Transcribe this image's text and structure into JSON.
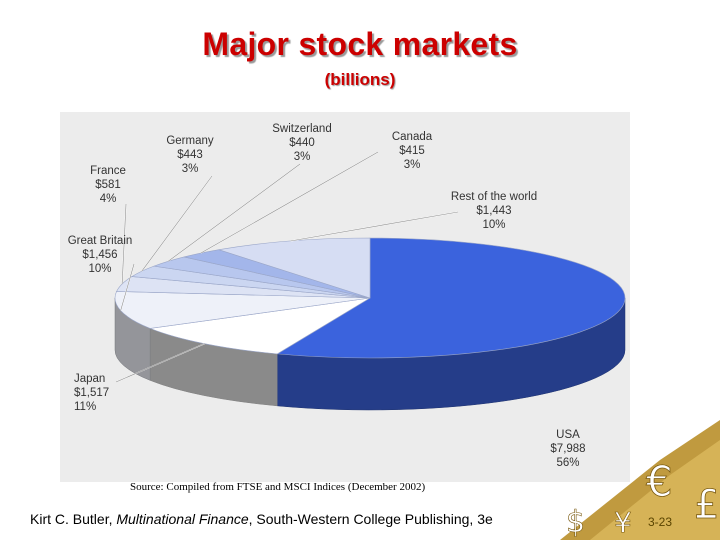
{
  "title": "Major stock markets",
  "subtitle": "(billions)",
  "source_note": "Source: Compiled from FTSE and MSCI Indices (December 2002)",
  "footer": {
    "author": "Kirt C. Butler, ",
    "book": "Multinational Finance",
    "publisher": ", South-Western College Publishing, 3e"
  },
  "page_number": "3-23",
  "decorations": {
    "symbols": [
      "€",
      "¥",
      "£"
    ],
    "accent_color": "#8b6914"
  },
  "chart_data": {
    "type": "pie",
    "title": "Major stock markets",
    "subtitle": "(billions)",
    "slices": [
      {
        "label": "USA",
        "value_label": "$7,988",
        "percent_label": "56%",
        "value": 7988,
        "color": "#3b63dd"
      },
      {
        "label": "Japan",
        "value_label": "$1,517",
        "percent_label": "11%",
        "value": 1517,
        "color": "#ffffff"
      },
      {
        "label": "Great Britain",
        "value_label": "$1,456",
        "percent_label": "10%",
        "value": 1456,
        "color": "#eef1f9"
      },
      {
        "label": "France",
        "value_label": "$581",
        "percent_label": "4%",
        "value": 581,
        "color": "#dde3f4"
      },
      {
        "label": "Germany",
        "value_label": "$443",
        "percent_label": "3%",
        "value": 443,
        "color": "#cbd6f1"
      },
      {
        "label": "Switzerland",
        "value_label": "$440",
        "percent_label": "3%",
        "value": 440,
        "color": "#b8c7ee"
      },
      {
        "label": "Canada",
        "value_label": "$415",
        "percent_label": "3%",
        "value": 415,
        "color": "#a3b6ea"
      },
      {
        "label": "Rest of the world",
        "value_label": "$1,443",
        "percent_label": "10%",
        "value": 1443,
        "color": "#d6ddf3"
      }
    ]
  }
}
